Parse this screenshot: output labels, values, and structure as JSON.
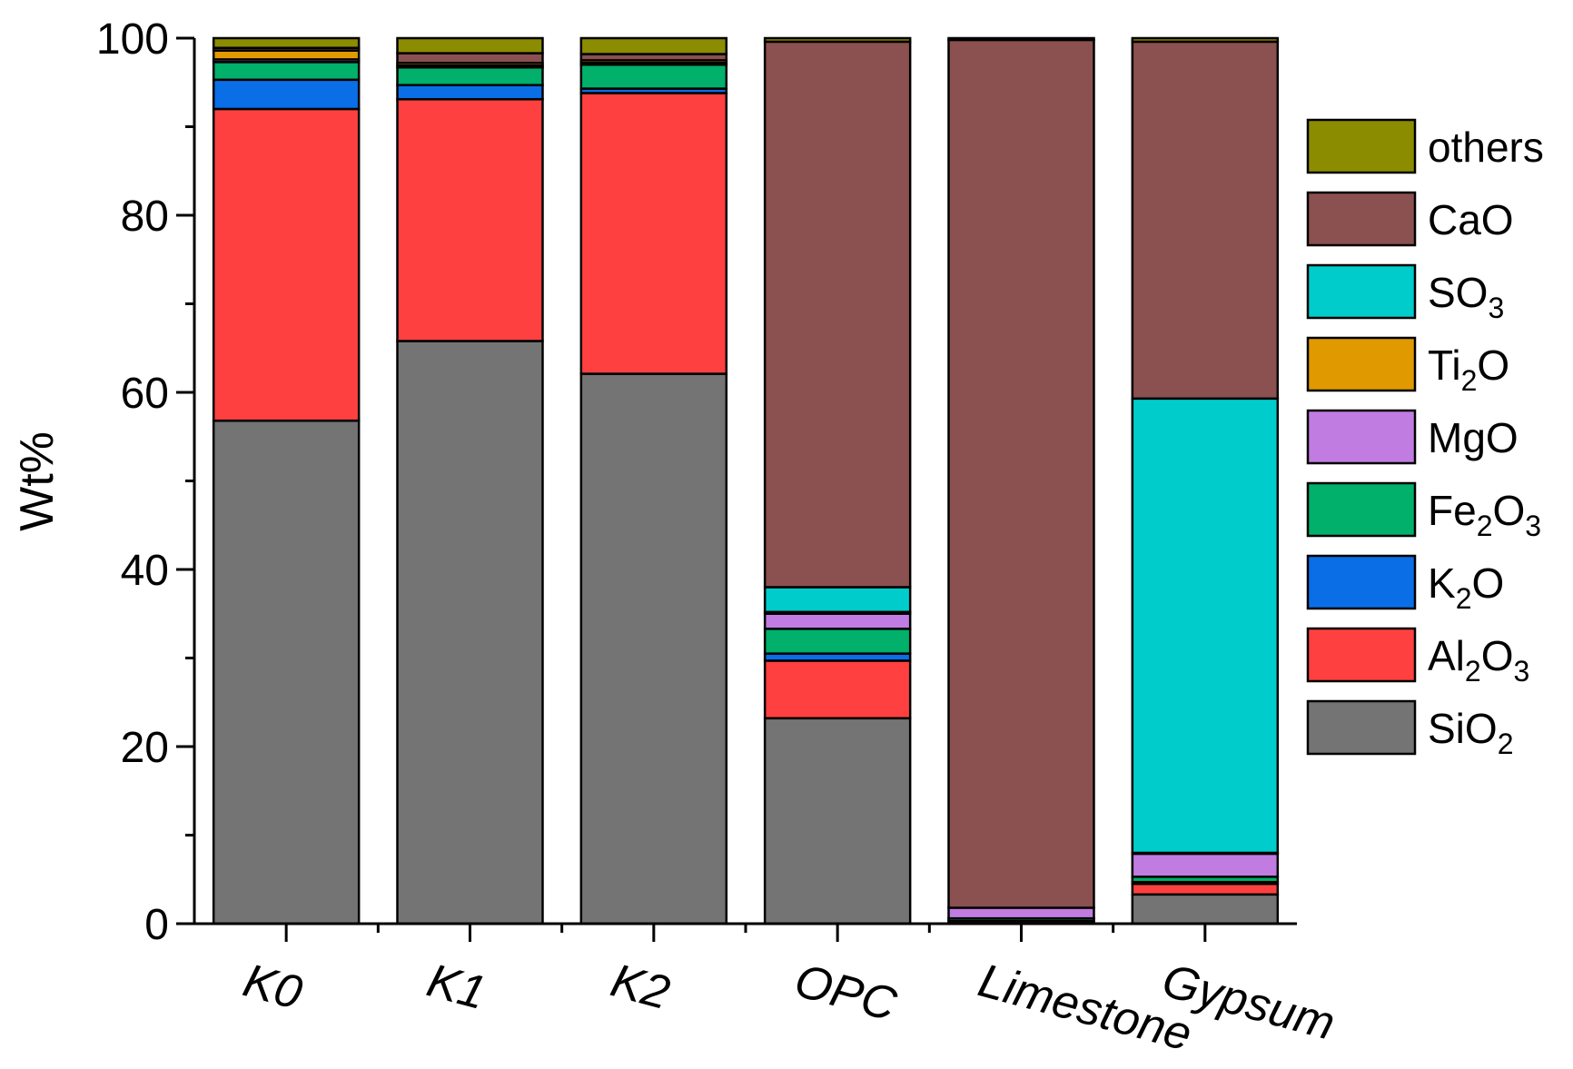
{
  "chart_data": {
    "type": "bar",
    "stacked": true,
    "title": "",
    "xlabel": "",
    "ylabel": "Wt%",
    "ylim": [
      0,
      100
    ],
    "yticks": [
      0,
      20,
      40,
      60,
      80,
      100
    ],
    "categories": [
      "K0",
      "K1",
      "K2",
      "OPC",
      "Limestone",
      "Gypsum"
    ],
    "series": [
      {
        "name": "SiO2",
        "label_main": "SiO",
        "label_sub": "2",
        "label_tail": "",
        "color": "#747474",
        "values": [
          56.8,
          65.8,
          62.1,
          23.2,
          0.0,
          3.3
        ]
      },
      {
        "name": "Al2O3",
        "label_main": "Al",
        "label_sub": "2",
        "label_tail": "O",
        "label_sub2": "3",
        "color": "#ff4040",
        "values": [
          35.2,
          27.3,
          31.7,
          6.5,
          0.3,
          1.2
        ]
      },
      {
        "name": "K2O",
        "label_main": "K",
        "label_sub": "2",
        "label_tail": "O",
        "color": "#0a6ee6",
        "values": [
          3.3,
          1.6,
          0.5,
          0.8,
          0.0,
          0.2
        ]
      },
      {
        "name": "Fe2O3",
        "label_main": "Fe",
        "label_sub": "2",
        "label_tail": "O",
        "label_sub2": "3",
        "color": "#00b06b",
        "values": [
          2.0,
          2.0,
          2.7,
          2.8,
          0.3,
          0.6
        ]
      },
      {
        "name": "MgO",
        "label_main": "MgO",
        "label_sub": "",
        "label_tail": "",
        "color": "#c07ce0",
        "values": [
          0.3,
          0.2,
          0.2,
          1.7,
          1.2,
          2.6
        ]
      },
      {
        "name": "Ti2O",
        "label_main": "Ti",
        "label_sub": "2",
        "label_tail": "O",
        "color": "#e09a00",
        "values": [
          1.0,
          0.3,
          0.3,
          0.2,
          0.0,
          0.1
        ]
      },
      {
        "name": "SO3",
        "label_main": "SO",
        "label_sub": "3",
        "label_tail": "",
        "color": "#00cccc",
        "values": [
          0.0,
          0.0,
          0.0,
          2.8,
          0.0,
          51.3
        ]
      },
      {
        "name": "CaO",
        "label_main": "CaO",
        "label_sub": "",
        "label_tail": "",
        "color": "#8b5050",
        "values": [
          0.3,
          1.1,
          0.7,
          61.6,
          98.0,
          40.3
        ]
      },
      {
        "name": "others",
        "label_main": "others",
        "label_sub": "",
        "label_tail": "",
        "color": "#8c8c00",
        "values": [
          1.1,
          1.7,
          1.8,
          0.4,
          0.2,
          0.4
        ]
      }
    ],
    "legend_order": [
      "others",
      "CaO",
      "SO3",
      "Ti2O",
      "MgO",
      "Fe2O3",
      "K2O",
      "Al2O3",
      "SiO2"
    ],
    "legend_position": "right"
  }
}
